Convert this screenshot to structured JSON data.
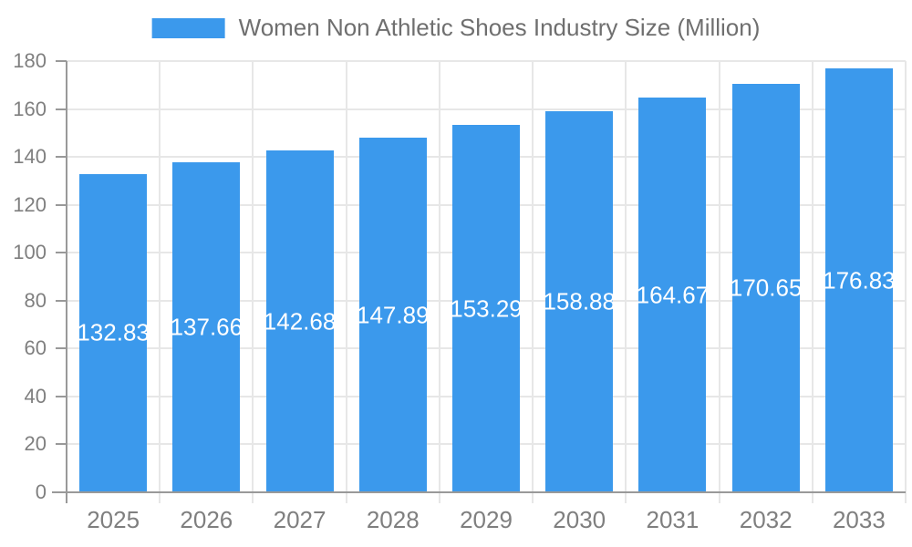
{
  "chart_data": {
    "type": "bar",
    "title": "Women Non Athletic Shoes Industry Size (Million)",
    "categories": [
      "2025",
      "2026",
      "2027",
      "2028",
      "2029",
      "2030",
      "2031",
      "2032",
      "2033"
    ],
    "series": [
      {
        "name": "Women Non Athletic Shoes Industry Size (Million)",
        "values": [
          132.83,
          137.66,
          142.68,
          147.89,
          153.29,
          158.88,
          164.67,
          170.65,
          176.83
        ]
      }
    ],
    "value_labels": [
      "132.83",
      "137.66",
      "142.68",
      "147.89",
      "153.29",
      "158.88",
      "164.67",
      "170.65",
      "176.83"
    ],
    "xlabel": "",
    "ylabel": "",
    "ylim": [
      0,
      180
    ],
    "ytick_step": 20,
    "ytick_labels": [
      "0",
      "20",
      "40",
      "60",
      "80",
      "100",
      "120",
      "140",
      "160",
      "180"
    ],
    "grid": true,
    "legend_position": "top-center",
    "value_label_position": "inside-middle",
    "colors": {
      "bar": "#3B99EC",
      "grid": "#E7E7E7",
      "axis": "#999999",
      "tick_label": "#7F7F7F",
      "legend_text": "#6F6F6F",
      "value_label": "#FFFFFF",
      "background": "#FFFFFF"
    }
  }
}
